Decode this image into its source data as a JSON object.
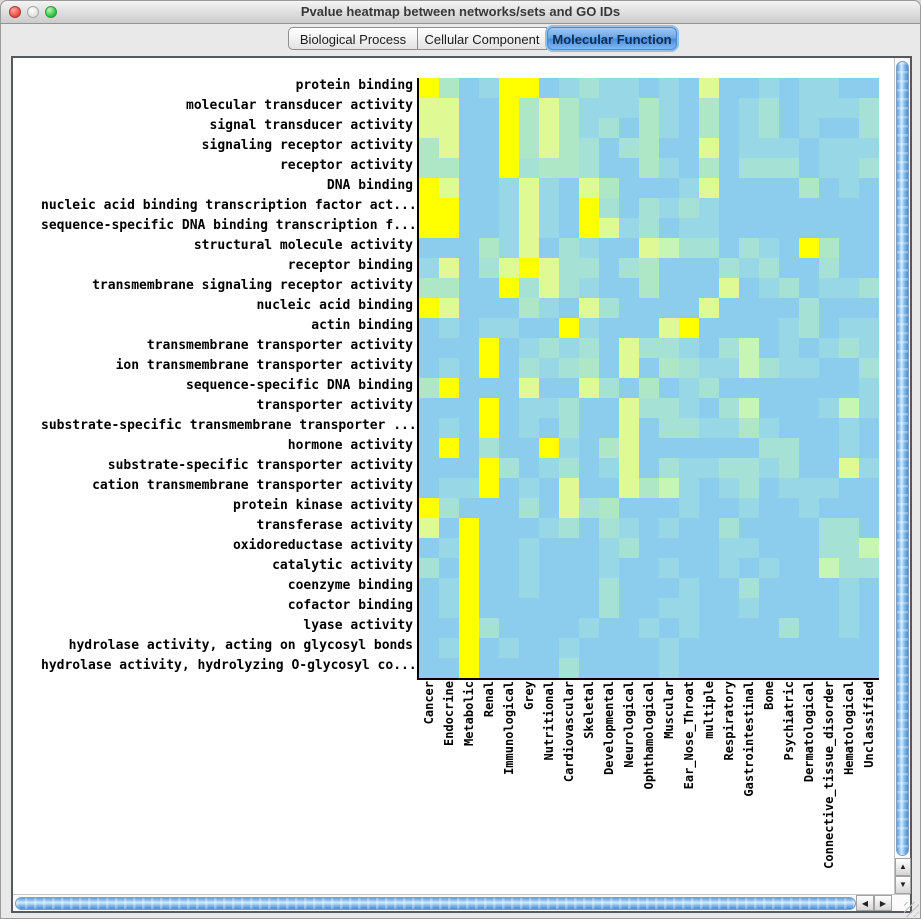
{
  "window": {
    "title": "Pvalue heatmap between networks/sets and GO IDs"
  },
  "tabs": [
    {
      "label": "Biological Process",
      "selected": false
    },
    {
      "label": "Cellular Component",
      "selected": false
    },
    {
      "label": "Molecular Function",
      "selected": true
    }
  ],
  "icons": {
    "scroll_up": "▲",
    "scroll_down": "▼",
    "scroll_left": "◀",
    "scroll_right": "▶"
  },
  "chart_data": {
    "type": "heatmap",
    "title": "Pvalue heatmap between networks/sets and GO IDs",
    "xlabel": "",
    "ylabel": "",
    "legend": "none",
    "grid": "off",
    "rows": [
      "protein binding",
      "molecular transducer activity",
      "signal transducer activity",
      "signaling receptor activity",
      "receptor activity",
      "DNA binding",
      "nucleic acid binding transcription factor act...",
      "sequence-specific DNA binding transcription f...",
      "structural molecule activity",
      "receptor binding",
      "transmembrane signaling receptor activity",
      "nucleic acid binding",
      "actin binding",
      "transmembrane transporter activity",
      "ion transmembrane transporter activity",
      "sequence-specific DNA binding",
      "transporter activity",
      "substrate-specific transmembrane transporter ...",
      "hormone activity",
      "substrate-specific transporter activity",
      "cation transmembrane transporter activity",
      "protein kinase activity",
      "transferase activity",
      "oxidoreductase activity",
      "catalytic activity",
      "coenzyme binding",
      "cofactor binding",
      "lyase activity",
      "hydrolase activity, acting on glycosyl bonds",
      "hydrolase activity, hydrolyzing O-glycosyl co..."
    ],
    "columns": [
      "Cancer",
      "Endocrine",
      "Metabolic",
      "Renal",
      "Immunological",
      "Grey",
      "Nutritional",
      "Cardiovascular",
      "Skeletal",
      "Developmental",
      "Neurological",
      "Ophthamological",
      "Muscular",
      "Ear_Nose_Throat",
      "multiple",
      "Respiratory",
      "Gastrointestinal",
      "Bone",
      "Psychiatric",
      "Dermatological",
      "Connective_tissue_disorder",
      "Hematological",
      "Unclassified"
    ],
    "palette": {
      "b": "#8CCDEE",
      "c": "#98D7E5",
      "t": "#A6E1D6",
      "g": "#AEE7C5",
      "G": "#C6F5B4",
      "l": "#DFFA95",
      "Y": "#FFFF00"
    },
    "palette_meaning": "Y = smallest p-value (most significant), l/G/g/t/c decreasing significance, b = background (least significant)",
    "cells": [
      "YgbcYYbctccbcblbbcbccbb",
      "llbbYglgcccgcbgbctbccct",
      "llbbYglgctbgcbgbctbcbbt",
      "glbbYglgtbtgbblbcccbccc",
      "ggbbYtggtbbgcbgbtttbcct",
      "Ylbbclcblgbbbclbbbbgbcb",
      "YYbbclcbYtbtctcbbbbbbbb",
      "YYbbclcbYlctbccbbbbbbbb",
      "bbbgclbtcbblGttbtcbYgbb",
      "clbtlYlttbtgbbbtctbbtbb",
      "ggbbYtltcbbgbbblbctbcct",
      "Ylbbbgcbltbbbblbbbbtbbb",
      "bcbccbbYcbbblYbbbbctbcc",
      "bbbYbctctblttcbtGbcbctc",
      "bcbYbtctgblbgtccGtccbbt",
      "gYbbblbbltbgbctbbbbbbbc",
      "bbbYbcctbblttcbtGbbbcGc",
      "bcbYbcbtbblbttccgcbbbcb",
      "bYbtbbYcbglbbbbbbttbbcb",
      "bbbYtbctbclbtccttctbblc",
      "bccYbcblbblgGcbctbcccbb",
      "Ytbbbtbltgbbbcbbcbbcbbb",
      "lbYbbbctbtcbcbbtbbbbttb",
      "bcYbbcbbbctbbbbccbbbttG",
      "tbYbbcbbbcbbcbbcbcbbGtt",
      "bcYbbcbbbtbbbcbbtbbbbcb",
      "bcYbbbbbbtbbccbbcbbbbcb",
      "bbYtbbbbcbbcbcbbbbtbbcb",
      "bcYbcbbcbbbbcbbbbbbbbbb",
      "bbYbbbbtbbbbcbbbbbbbbbb"
    ]
  }
}
